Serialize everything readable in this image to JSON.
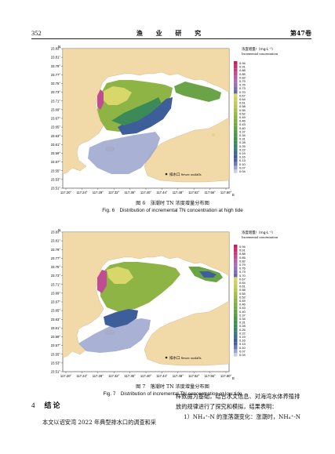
{
  "header": {
    "page_number": "352",
    "journal": "渔 业 研 究",
    "volume": "第47卷"
  },
  "maps": {
    "lat_ticks": [
      "23.83°",
      "23.81°",
      "23.79°",
      "23.77°",
      "23.75°",
      "23.73°",
      "23.71°",
      "23.69°",
      "23.67°",
      "23.65°",
      "23.63°",
      "23.61°",
      "23.59°",
      "23.57°",
      "23.55°",
      "23.53°",
      "23.51°"
    ],
    "lon_ticks": [
      "117.20°",
      "117.24°",
      "117.28°",
      "117.32°",
      "117.36°",
      "117.40°",
      "117.44°",
      "117.48°",
      "117.52°",
      "117.56°",
      "117.60°"
    ],
    "north_label": "N",
    "east_label": "E",
    "legend_title_zh": "浓度增量/（mg·L⁻¹）",
    "legend_title_en": "Incremental concentration",
    "legend_values": [
      "0.94",
      "0.91",
      "0.88",
      "0.85",
      "0.82",
      "0.79",
      "0.76",
      "0.73",
      "0.70",
      "0.67",
      "0.64",
      "0.61",
      "0.58",
      "0.55",
      "0.52",
      "0.49",
      "0.46",
      "0.43",
      "0.40",
      "0.37",
      "0.34",
      "0.31",
      "0.28",
      "0.25",
      "0.22",
      "0.19",
      "0.16",
      "0.13",
      "0.10",
      "0.07",
      "0.04"
    ],
    "legend_colors": [
      "#c0265a",
      "#c8306a",
      "#c83a7a",
      "#c04c92",
      "#b860a6",
      "#a870b4",
      "#9870b8",
      "#7c6cb4",
      "#6866b2",
      "#d8d86a",
      "#cfd262",
      "#c4cc5a",
      "#b8c654",
      "#aac04e",
      "#9cba4a",
      "#8eb446",
      "#80ae44",
      "#72a842",
      "#64a242",
      "#589c44",
      "#4c9648",
      "#43904e",
      "#3c8a58",
      "#3a8468",
      "#3e7e7a",
      "#3f6e8c",
      "#3e5e9a",
      "#4a5ea8",
      "#6a7ab8",
      "#9aa4cc",
      "#c8cfe2"
    ],
    "sewer_label": "排水口 Sewer outfalls"
  },
  "figure6": {
    "caption_zh": "图 6　涨潮时 TN 浓度增量分布图",
    "caption_en": "Fig. 6　Distribution of incremental TN concentration at high tide"
  },
  "figure7": {
    "caption_zh": "图 7　落潮时 TN 浓度增量分布图",
    "caption_en": "Fig. 7　Distribution of incremental TN concentration at low tide"
  },
  "section4": {
    "number": "4",
    "title": "结论",
    "left_text": "本文以诏安湾 2022 年典型排水口的调查和采",
    "right_line1": "样数据为基础，结合水文信息、对海湾水体养殖排",
    "right_line2": "放的规律进行了探究和模拟，结果表明：",
    "right_item1": "1）NH₄⁺-N 的涨落潮变化：涨潮时，NH₄⁺-N"
  },
  "colors": {
    "land": "#f2d9a8",
    "sea_bg": "#ffffff",
    "frame": "#333333"
  }
}
